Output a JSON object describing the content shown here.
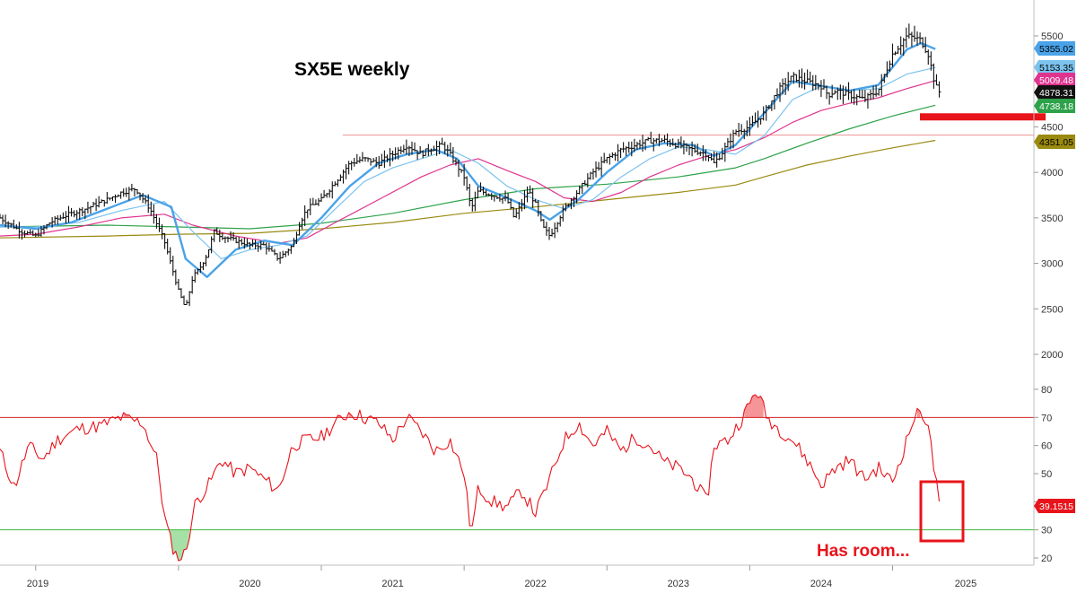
{
  "colors": {
    "price": "#111111",
    "ma_fast": "#4aa3e8",
    "ma_slow": "#7cc3ee",
    "ma_pink": "#e0338f",
    "ma_green": "#2ea24a",
    "ma_olive": "#9a8a10",
    "resistance": "#f0a0a0",
    "rsi": "#e8141b",
    "rsi_upper": "#d42020",
    "rsi_lower": "#3cba3c",
    "highlight": "#e8141b",
    "grid": "#c8c8c8"
  },
  "chart_data": [
    {
      "type": "line",
      "title": "SX5E weekly",
      "x_labels": [
        "2019",
        "2020",
        "2021",
        "2022",
        "2023",
        "2024",
        "2025"
      ],
      "y_ticks": [
        2000,
        2500,
        3000,
        3500,
        4000,
        4500,
        5000,
        5500
      ],
      "ylim": [
        2000,
        5650
      ],
      "x_range": [
        "2018-10",
        "2025-07"
      ],
      "resistance_level": 4410,
      "series": [
        {
          "key": "price",
          "style": "ohlc",
          "x": [
            2018.75,
            2018.9,
            2019.0,
            2019.1,
            2019.2,
            2019.35,
            2019.5,
            2019.6,
            2019.7,
            2019.8,
            2019.9,
            2020.0,
            2020.05,
            2020.1,
            2020.15,
            2020.2,
            2020.25,
            2020.3,
            2020.4,
            2020.5,
            2020.6,
            2020.7,
            2020.8,
            2020.85,
            2020.9,
            2021.0,
            2021.1,
            2021.2,
            2021.3,
            2021.4,
            2021.5,
            2021.6,
            2021.7,
            2021.75,
            2021.85,
            2021.9,
            2022.0,
            2022.05,
            2022.1,
            2022.2,
            2022.3,
            2022.35,
            2022.45,
            2022.5,
            2022.55,
            2022.6,
            2022.7,
            2022.8,
            2022.9,
            2023.0,
            2023.1,
            2023.2,
            2023.3,
            2023.4,
            2023.5,
            2023.6,
            2023.7,
            2023.75,
            2023.8,
            2023.9,
            2024.0,
            2024.1,
            2024.2,
            2024.3,
            2024.4,
            2024.5,
            2024.55,
            2024.6,
            2024.7,
            2024.8,
            2024.9,
            2025.0,
            2025.1,
            2025.15,
            2025.2,
            2025.25,
            2025.3,
            2025.33
          ],
          "values": [
            3500,
            3350,
            3300,
            3450,
            3520,
            3600,
            3700,
            3780,
            3820,
            3600,
            3250,
            2700,
            2500,
            2850,
            2950,
            3100,
            3350,
            3300,
            3250,
            3200,
            3200,
            3050,
            3200,
            3450,
            3600,
            3700,
            3900,
            4100,
            4150,
            4100,
            4200,
            4300,
            4200,
            4250,
            4300,
            4200,
            3950,
            3600,
            3800,
            3750,
            3700,
            3500,
            3800,
            3650,
            3400,
            3300,
            3600,
            3800,
            4000,
            4150,
            4250,
            4300,
            4350,
            4350,
            4300,
            4250,
            4200,
            4100,
            4200,
            4450,
            4500,
            4650,
            4900,
            5050,
            5000,
            4950,
            4850,
            4900,
            4850,
            4800,
            4900,
            5300,
            5500,
            5480,
            5450,
            5300,
            4950,
            4878
          ]
        },
        {
          "key": "ma_fast",
          "name": "",
          "label": "5355.02",
          "x": [
            2018.75,
            2019.0,
            2019.25,
            2019.5,
            2019.75,
            2019.95,
            2020.05,
            2020.2,
            2020.4,
            2020.6,
            2020.8,
            2021.0,
            2021.2,
            2021.4,
            2021.6,
            2021.8,
            2021.95,
            2022.1,
            2022.3,
            2022.5,
            2022.6,
            2022.8,
            2023.0,
            2023.2,
            2023.4,
            2023.6,
            2023.75,
            2023.9,
            2024.1,
            2024.3,
            2024.5,
            2024.7,
            2024.9,
            2025.1,
            2025.2,
            2025.3
          ],
          "values": [
            3420,
            3380,
            3450,
            3600,
            3750,
            3620,
            3050,
            2850,
            3150,
            3250,
            3200,
            3500,
            3850,
            4100,
            4200,
            4250,
            4150,
            3850,
            3720,
            3580,
            3480,
            3700,
            4000,
            4250,
            4320,
            4300,
            4180,
            4300,
            4650,
            5000,
            4950,
            4900,
            4960,
            5350,
            5420,
            5355
          ]
        },
        {
          "key": "ma_slow",
          "name": "",
          "label": "5153.35",
          "x": [
            2018.75,
            2019.0,
            2019.3,
            2019.6,
            2019.9,
            2020.1,
            2020.3,
            2020.5,
            2020.7,
            2020.9,
            2021.1,
            2021.3,
            2021.5,
            2021.7,
            2021.9,
            2022.1,
            2022.3,
            2022.5,
            2022.7,
            2022.9,
            2023.1,
            2023.3,
            2023.5,
            2023.7,
            2023.9,
            2024.1,
            2024.3,
            2024.5,
            2024.7,
            2024.9,
            2025.1,
            2025.3
          ],
          "values": [
            3400,
            3400,
            3450,
            3580,
            3680,
            3350,
            3050,
            3150,
            3200,
            3300,
            3600,
            3900,
            4050,
            4150,
            4250,
            4100,
            3850,
            3700,
            3600,
            3700,
            3950,
            4150,
            4280,
            4250,
            4200,
            4400,
            4800,
            4950,
            4900,
            4920,
            5080,
            5153
          ]
        },
        {
          "key": "ma_pink",
          "name": "",
          "label": "5009.48",
          "x": [
            2018.75,
            2019.0,
            2019.3,
            2019.6,
            2019.9,
            2020.1,
            2020.4,
            2020.7,
            2020.9,
            2021.1,
            2021.4,
            2021.7,
            2021.9,
            2022.1,
            2022.3,
            2022.5,
            2022.7,
            2022.9,
            2023.1,
            2023.3,
            2023.5,
            2023.7,
            2023.9,
            2024.1,
            2024.3,
            2024.5,
            2024.7,
            2024.9,
            2025.1,
            2025.3
          ],
          "values": [
            3300,
            3320,
            3400,
            3500,
            3540,
            3420,
            3300,
            3220,
            3280,
            3450,
            3700,
            3950,
            4080,
            4150,
            4020,
            3900,
            3720,
            3680,
            3780,
            3950,
            4080,
            4180,
            4250,
            4380,
            4550,
            4680,
            4760,
            4820,
            4920,
            5009
          ]
        },
        {
          "key": "ma_green",
          "name": "",
          "label": "4738.18",
          "x": [
            2018.75,
            2019.5,
            2020.0,
            2020.5,
            2021.0,
            2021.5,
            2022.0,
            2022.5,
            2023.0,
            2023.5,
            2023.9,
            2024.1,
            2024.4,
            2024.7,
            2025.0,
            2025.3
          ],
          "values": [
            3400,
            3420,
            3400,
            3380,
            3440,
            3550,
            3700,
            3820,
            3870,
            3950,
            4050,
            4150,
            4320,
            4480,
            4620,
            4738
          ]
        },
        {
          "key": "ma_olive",
          "name": "",
          "label": "4351.05",
          "x": [
            2018.75,
            2019.5,
            2020.0,
            2020.5,
            2021.0,
            2021.5,
            2022.0,
            2022.5,
            2023.0,
            2023.5,
            2023.9,
            2024.1,
            2024.4,
            2024.7,
            2025.0,
            2025.3
          ],
          "values": [
            3280,
            3300,
            3320,
            3330,
            3380,
            3450,
            3550,
            3620,
            3700,
            3780,
            3860,
            3950,
            4080,
            4180,
            4270,
            4351
          ]
        }
      ],
      "price_label": "4878.31",
      "support_marker": 4610
    },
    {
      "type": "line",
      "y_ticks": [
        20,
        30,
        40,
        50,
        60,
        70,
        80
      ],
      "ylim": [
        18,
        84
      ],
      "overbought": 70,
      "oversold": 30,
      "last_label": "39.1515",
      "series": [
        {
          "key": "rsi",
          "name": "",
          "x": [
            2018.75,
            2018.85,
            2018.95,
            2019.05,
            2019.15,
            2019.3,
            2019.45,
            2019.6,
            2019.75,
            2019.85,
            2019.9,
            2019.95,
            2020.0,
            2020.05,
            2020.08,
            2020.12,
            2020.2,
            2020.3,
            2020.4,
            2020.5,
            2020.6,
            2020.7,
            2020.8,
            2020.9,
            2021.0,
            2021.1,
            2021.2,
            2021.3,
            2021.4,
            2021.5,
            2021.6,
            2021.7,
            2021.8,
            2021.9,
            2022.0,
            2022.05,
            2022.1,
            2022.2,
            2022.3,
            2022.4,
            2022.5,
            2022.6,
            2022.7,
            2022.8,
            2022.9,
            2023.0,
            2023.1,
            2023.2,
            2023.3,
            2023.4,
            2023.5,
            2023.6,
            2023.7,
            2023.75,
            2023.85,
            2023.95,
            2024.05,
            2024.12,
            2024.2,
            2024.3,
            2024.4,
            2024.5,
            2024.6,
            2024.7,
            2024.8,
            2024.9,
            2025.0,
            2025.1,
            2025.15,
            2025.2,
            2025.25,
            2025.28,
            2025.33
          ],
          "values": [
            58,
            45,
            60,
            55,
            62,
            66,
            67,
            70,
            68,
            55,
            35,
            25,
            19,
            22,
            30,
            40,
            45,
            55,
            50,
            52,
            48,
            44,
            60,
            62,
            63,
            68,
            72,
            70,
            68,
            62,
            70,
            65,
            58,
            62,
            50,
            28,
            45,
            40,
            38,
            44,
            36,
            48,
            62,
            68,
            60,
            65,
            58,
            63,
            60,
            54,
            52,
            48,
            40,
            60,
            62,
            70,
            80,
            70,
            66,
            62,
            55,
            46,
            52,
            55,
            48,
            52,
            47,
            62,
            70,
            72,
            68,
            55,
            39.15
          ]
        }
      ]
    }
  ],
  "annotations": {
    "title": "SX5E weekly",
    "note": "Has room..."
  }
}
